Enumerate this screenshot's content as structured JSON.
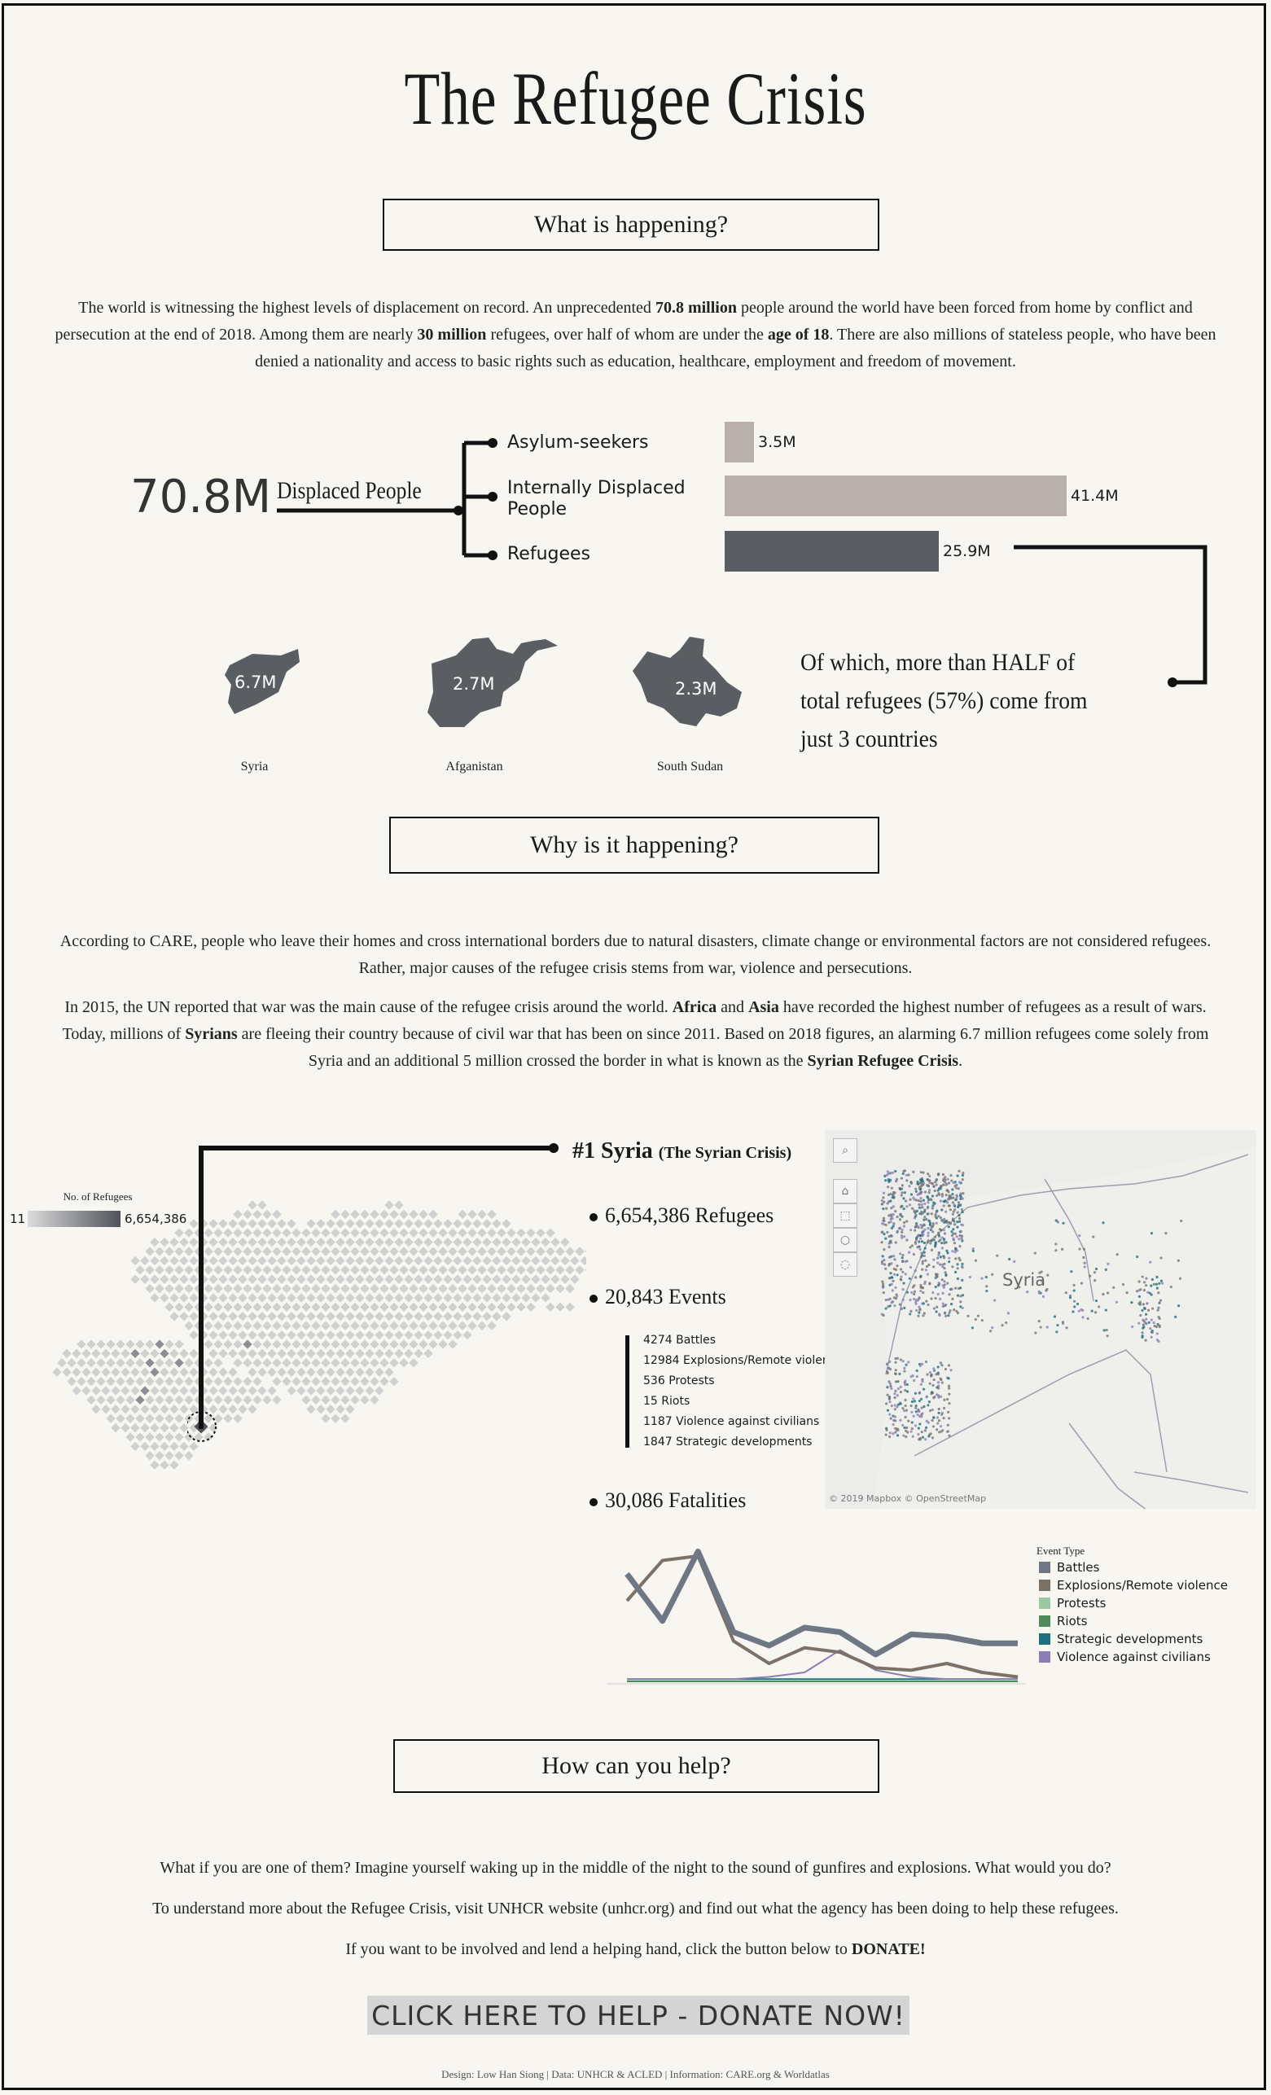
{
  "title": "The Refugee Crisis",
  "sections": {
    "what": "What is happening?",
    "why": "Why is it happening?",
    "how": "How can you help?"
  },
  "intro": {
    "p1a": "The world is witnessing the highest levels of displacement on record. An unprecedented ",
    "p1b": "70.8 million",
    "p1c": " people around the world have been forced from home by conflict and persecution at the end of 2018. Among them are nearly ",
    "p1d": "30 million",
    "p1e": " refugees, over half of whom are under the ",
    "p1f": "age of 18",
    "p1g": ". There are also millions of stateless people, who have been denied a nationality and access to basic rights such as education, healthcare, employment and freedom of movement."
  },
  "displaced": {
    "total": "70.8M",
    "total_label": "Displaced People",
    "categories": [
      {
        "label": "Asylum-seekers",
        "value": 3.5,
        "value_label": "3.5M",
        "color": "#bab0ab"
      },
      {
        "label": "Internally Displaced People",
        "value": 41.4,
        "value_label": "41.4M",
        "color": "#bab0ab"
      },
      {
        "label": "Refugees",
        "value": 25.9,
        "value_label": "25.9M",
        "color": "#5a5d62"
      }
    ],
    "max_value": 41.4
  },
  "countries": [
    {
      "name": "Syria",
      "value": "6.7M",
      "icon": "syria-shape"
    },
    {
      "name": "Afganistan",
      "value": "2.7M",
      "icon": "afghanistan-shape"
    },
    {
      "name": "South Sudan",
      "value": "2.3M",
      "icon": "south-sudan-shape"
    }
  ],
  "half_note": "Of which, more than HALF of total refugees (57%) come from just 3 countries",
  "why": {
    "p1": "According to CARE, people who leave their homes and cross international borders due to natural disasters, climate change or environmental factors are not considered refugees. Rather, major causes of the refugee crisis stems from war, violence and persecutions.",
    "p2a": "In 2015, the UN reported that war was the main cause of the refugee crisis around the world. ",
    "p2b": "Africa",
    "p2c": " and ",
    "p2d": "Asia",
    "p2e": " have recorded the highest number of refugees as a result of wars. Today, millions of ",
    "p2f": "Syrians",
    "p2g": " are fleeing their country because of civil war that has been on since 2011. Based on 2018 figures, an alarming 6.7 million refugees come solely from Syria and an additional 5 million crossed the border in what is known as the ",
    "p2h": "Syrian Refugee Crisis",
    "p2i": "."
  },
  "world_map": {
    "legend_title": "No. of Refugees",
    "legend_min": "11",
    "legend_max": "6,654,386"
  },
  "syria": {
    "rank_title": "#1 Syria",
    "rank_sub": "(The Syrian Crisis)",
    "refugees": "6,654,386 Refugees",
    "events": "20,843 Events",
    "event_breakdown": [
      {
        "count": "4274",
        "type": "Battles"
      },
      {
        "count": "12984",
        "type": "Explosions/Remote violence"
      },
      {
        "count": "536",
        "type": "Protests"
      },
      {
        "count": "15",
        "type": "Riots"
      },
      {
        "count": "1187",
        "type": "Violence against civilians"
      },
      {
        "count": "1847",
        "type": "Strategic developments"
      }
    ],
    "fatalities": "30,086 Fatalities",
    "map_label": "Syria",
    "map_credit": "© 2019 Mapbox  © OpenStreetMap"
  },
  "chart_data": {
    "type": "line",
    "title": "",
    "legend_title": "Event Type",
    "series": [
      {
        "name": "Battles",
        "color": "#6f7784",
        "values": [
          48,
          27,
          58,
          22,
          16,
          24,
          22,
          12,
          21,
          20,
          17,
          17
        ]
      },
      {
        "name": "Explosions/Remote violence",
        "color": "#7c7167",
        "values": [
          36,
          54,
          56,
          18,
          8,
          15,
          13,
          6,
          5,
          8,
          4,
          2
        ]
      },
      {
        "name": "Protests",
        "color": "#98c9a3",
        "values": [
          0,
          0,
          0,
          0,
          0,
          0,
          0,
          0,
          0,
          0,
          0,
          0
        ]
      },
      {
        "name": "Riots",
        "color": "#4f8a5b",
        "values": [
          0,
          0,
          0,
          0,
          0,
          0,
          0,
          0,
          0,
          0,
          0,
          0
        ]
      },
      {
        "name": "Strategic developments",
        "color": "#1d6f80",
        "values": [
          1,
          1,
          1,
          1,
          1,
          1,
          1,
          1,
          1,
          1,
          1,
          1
        ]
      },
      {
        "name": "Violence against civilians",
        "color": "#8a7fb5",
        "values": [
          1,
          1,
          1,
          1,
          2,
          4,
          14,
          5,
          2,
          1,
          1,
          1
        ]
      }
    ],
    "x": [
      1,
      2,
      3,
      4,
      5,
      6,
      7,
      8,
      9,
      10,
      11,
      12
    ],
    "ylim": [
      0,
      60
    ]
  },
  "help": {
    "p1": "What if you are one of them? Imagine yourself waking up in the middle of the night to the sound of gunfires and explosions. What would you do?",
    "p2": "To understand more about the Refugee Crisis, visit UNHCR website (unhcr.org) and find out what the agency has been doing to help these refugees.",
    "p3a": "If you want to be involved and lend a helping hand, click the button below to ",
    "p3b": "DONATE!",
    "donate_button": "CLICK HERE TO HELP - DONATE NOW!"
  },
  "footer": "Design: Low Han Siong  |  Data: UNHCR & ACLED  |  Information: CARE.org & Worldatlas"
}
